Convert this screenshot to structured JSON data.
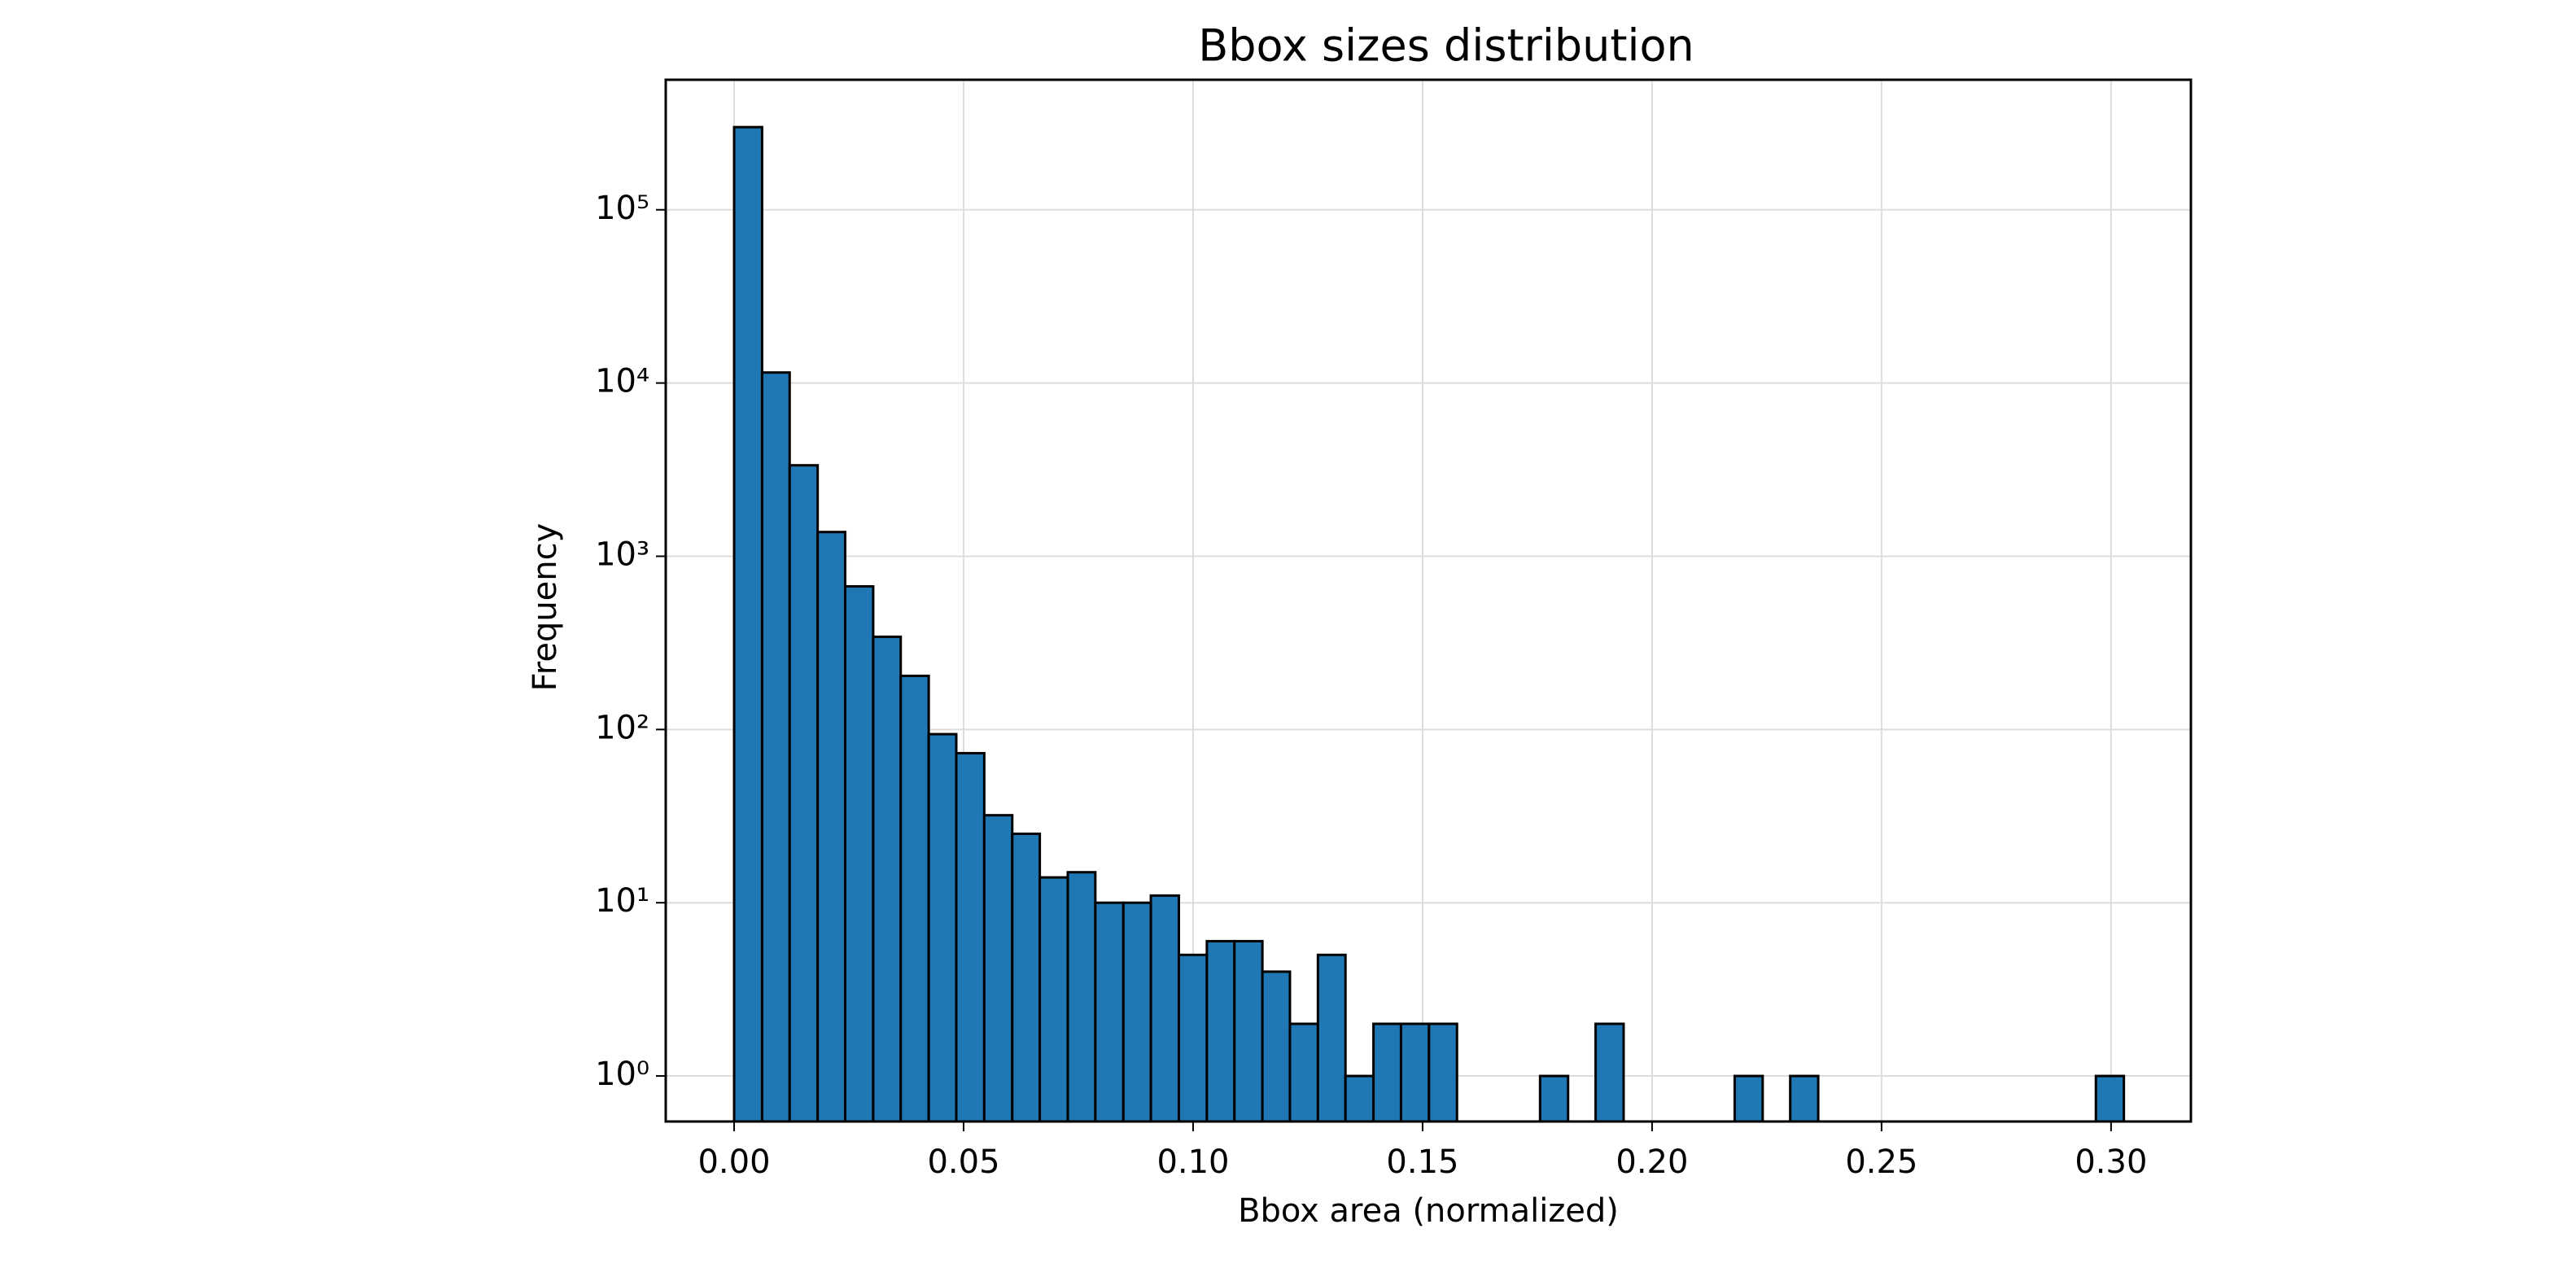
{
  "chart_data": {
    "type": "histogram",
    "title": "Bbox sizes distribution",
    "x_label": "Bbox area (normalized)",
    "y_label": "Frequency",
    "bins": [
      0,
      0.0061,
      0.0121,
      0.0182,
      0.0242,
      0.0303,
      0.0363,
      0.0424,
      0.0484,
      0.0545,
      0.0606,
      0.0666,
      0.0727,
      0.0787,
      0.0848,
      0.0908,
      0.0969,
      0.103,
      0.109,
      0.1151,
      0.1211,
      0.1272,
      0.1332,
      0.1393,
      0.1453,
      0.1514,
      0.1575,
      0.1635,
      0.1696,
      0.1756,
      0.1817,
      0.1877,
      0.1938,
      0.1998,
      0.2059,
      0.212,
      0.218,
      0.2241,
      0.2301,
      0.2362,
      0.2422,
      0.2483,
      0.2544,
      0.2604,
      0.2665,
      0.2725,
      0.2786,
      0.2846,
      0.2907,
      0.2967,
      0.3028
    ],
    "values": [
      300000,
      11500,
      3350,
      1380,
      670,
      343,
      204,
      94,
      73,
      32,
      25,
      14,
      15,
      10,
      10,
      11,
      5,
      6,
      6,
      4,
      2,
      5,
      1,
      2,
      2,
      2,
      0,
      0,
      0,
      1,
      0,
      2,
      0,
      0,
      0,
      0,
      1,
      0,
      1,
      0,
      0,
      0,
      0,
      0,
      0,
      0,
      0,
      0,
      0,
      1
    ],
    "color": "#1f77b4",
    "edge_color": "#000000",
    "log_y": true,
    "grid": true,
    "xlim": [
      -0.0149,
      0.3174
    ],
    "ylim": [
      0.546,
      563000
    ],
    "xticks": [
      {
        "value": 0,
        "label": "0.00"
      },
      {
        "value": 0.05,
        "label": "0.05"
      },
      {
        "value": 0.1,
        "label": "0.10"
      },
      {
        "value": 0.15,
        "label": "0.15"
      },
      {
        "value": 0.2,
        "label": "0.20"
      },
      {
        "value": 0.25,
        "label": "0.25"
      },
      {
        "value": 0.3,
        "label": "0.30"
      }
    ],
    "yticks": [
      {
        "value": 1,
        "label": "10⁰"
      },
      {
        "value": 10,
        "label": "10¹"
      },
      {
        "value": 100,
        "label": "10²"
      },
      {
        "value": 1000,
        "label": "10³"
      },
      {
        "value": 10000,
        "label": "10⁴"
      },
      {
        "value": 100000,
        "label": "10⁵"
      }
    ]
  }
}
